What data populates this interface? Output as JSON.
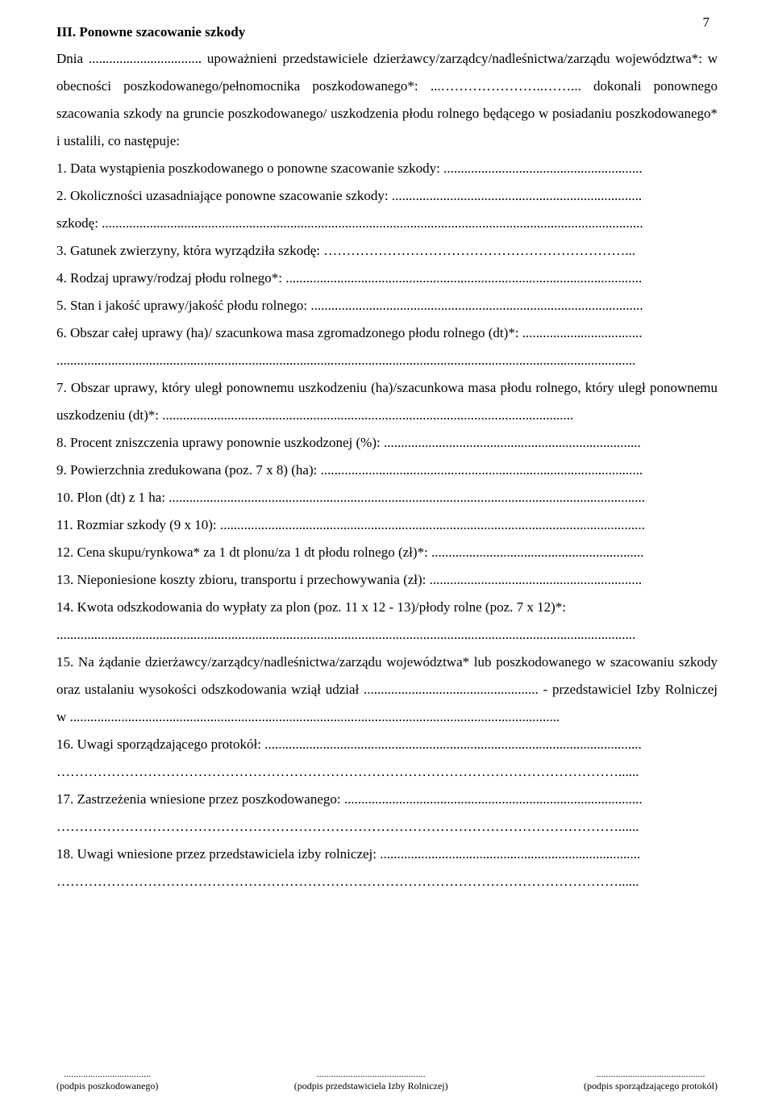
{
  "page_number": "7",
  "section_title": "III. Ponowne szacowanie szkody",
  "intro_p1": "Dnia ................................. upoważnieni przedstawiciele dzierżawcy/zarządcy/nadleśnictwa/zarządu województwa*: w obecności poszkodowanego/pełnomocnika poszkodowanego*: ...…………………..……... dokonali ponownego szacowania szkody na gruncie poszkodowanego/ uszkodzenia płodu rolnego będącego w posiadaniu poszkodowanego* i ustalili, co następuje:",
  "items": [
    "1. Data wystąpienia poszkodowanego o ponowne szacowanie szkody: ..........................................................",
    "2. Okoliczności uzasadniające ponowne szacowanie szkody: .........................................................................",
    "szkodę: ..............................................................................................................................................................",
    "3. Gatunek zwierzyny, która wyrządziła szkodę: …………………………………………………………...",
    "4. Rodzaj uprawy/rodzaj płodu rolnego*: ........................................................................................................",
    "5. Stan i jakość uprawy/jakość płodu rolnego: .................................................................................................",
    "6. Obszar całej uprawy (ha)/ szacunkowa masa zgromadzonego płodu rolnego (dt)*: ...................................",
    ".........................................................................................................................................................................",
    "7. Obszar uprawy, który uległ ponownemu uszkodzeniu (ha)/szacunkowa masa płodu rolnego, który uległ ponownemu uszkodzeniu (dt)*: ........................................................................................................................",
    "8. Procent zniszczenia uprawy ponownie uszkodzonej (%): ...........................................................................",
    "9. Powierzchnia zredukowana (poz. 7 x 8) (ha): ..............................................................................................",
    "10. Plon (dt) z 1 ha: ...........................................................................................................................................",
    "11. Rozmiar szkody (9 x 10): ............................................................................................................................",
    "12. Cena skupu/rynkowa* za 1 dt plonu/za 1 dt płodu rolnego (zł)*: ..............................................................",
    "13. Nieponiesione koszty zbioru, transportu i przechowywania (zł): ..............................................................",
    "14. Kwota odszkodowania do wypłaty za plon (poz. 11 x 12 - 13)/płody rolne (poz. 7 x 12)*:",
    ".........................................................................................................................................................................",
    "15. Na żądanie dzierżawcy/zarządcy/nadleśnictwa/zarządu województwa* lub poszkodowanego w szacowaniu szkody oraz ustalaniu wysokości odszkodowania wziął udział ................................................... - przedstawiciel Izby Rolniczej w ...............................................................................................................................................",
    "16. Uwagi sporządzającego protokół: ..............................................................................................................",
    "……………………………………………………………………………………………………………......",
    "17. Zastrzeżenia wniesione przez poszkodowanego: .......................................................................................",
    "……………………………………………………………………………………………………………......",
    "18. Uwagi wniesione przez przedstawiciela izby rolniczej: ............................................................................",
    "……………………………………………………………………………………………………………......"
  ],
  "footer": {
    "left_dots": "....................................",
    "left_label": "(podpis poszkodowanego)",
    "mid_dots": ".............................................",
    "mid_label": "(podpis przedstawiciela Izby Rolniczej)",
    "right_dots": ".............................................",
    "right_label": "(podpis sporządzającego protokół)"
  }
}
